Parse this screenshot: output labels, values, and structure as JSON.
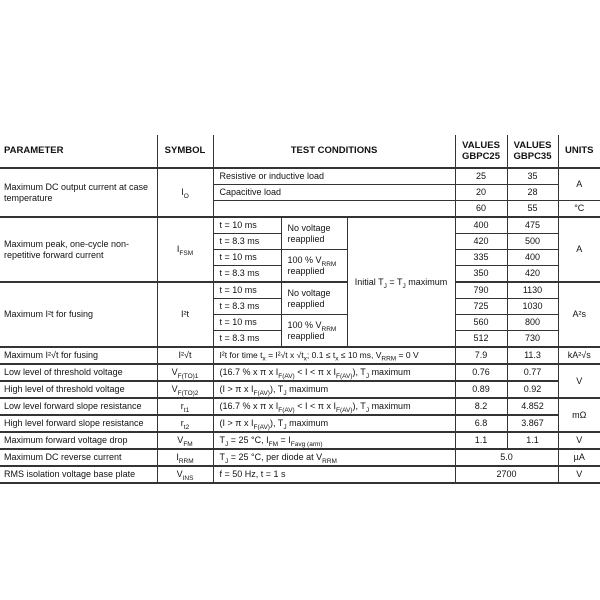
{
  "page": {
    "background": "#ffffff",
    "line_color": "#343434",
    "text_color": "#121212"
  },
  "header": {
    "parameter": "PARAMETER",
    "symbol": "SYMBOL",
    "test_conditions": "TEST CONDITIONS",
    "values_gbpc25_line1": "VALUES",
    "values_gbpc25_line2": "GBPC25",
    "values_gbpc35_line1": "VALUES",
    "values_gbpc35_line2": "GBPC35",
    "units": "UNITS"
  },
  "io": {
    "parameter": "Maximum DC output current at case temperature",
    "symbol": [
      "I",
      {
        "sub": "O"
      }
    ],
    "rows": [
      {
        "condition": "Resistive or inductive load",
        "gbpc25": "25",
        "gbpc35": "35"
      },
      {
        "condition": "Capacitive load",
        "gbpc25": "20",
        "gbpc35": "28"
      },
      {
        "condition": "",
        "gbpc25": "60",
        "gbpc35": "55"
      }
    ],
    "unit_current": "A",
    "unit_temp": "°C"
  },
  "surge": {
    "parameter": "Maximum peak, one-cycle non-repetitive forward current",
    "symbol": [
      "I",
      {
        "sub": "FSM"
      }
    ],
    "times": [
      "t = 10 ms",
      "t = 8.3 ms",
      "t = 10 ms",
      "t = 8.3 ms"
    ],
    "no_voltage": "No voltage reapplied",
    "vrrm_reapplied": [
      "100 % V",
      {
        "sub": "RRM"
      },
      " reapplied"
    ],
    "gbpc25": [
      "400",
      "420",
      "335",
      "350"
    ],
    "gbpc35": [
      "475",
      "500",
      "400",
      "420"
    ],
    "unit": "A"
  },
  "i2t": {
    "parameter": "Maximum I²t for fusing",
    "symbol": "I²t",
    "times": [
      "t = 10 ms",
      "t = 8.3 ms",
      "t = 10 ms",
      "t = 8.3 ms"
    ],
    "no_voltage": "No voltage reapplied",
    "vrrm_reapplied": [
      "100 % V",
      {
        "sub": "RRM"
      },
      " reapplied"
    ],
    "gbpc25": [
      "790",
      "725",
      "560",
      "512"
    ],
    "gbpc35": [
      "1130",
      "1030",
      "800",
      "730"
    ],
    "unit": "A²s"
  },
  "initial_tj": [
    "Initial T",
    {
      "sub": "J"
    },
    " = T",
    {
      "sub": "J"
    },
    " maximum"
  ],
  "simple_rows": [
    {
      "parameter": "Maximum I²√t for fusing",
      "symbol": "I²√t",
      "condition": [
        "I²t for time t",
        {
          "sub": "x"
        },
        " = I²√t x √t",
        {
          "sub": "x"
        },
        "; 0.1 ≤ t",
        {
          "sub": "x"
        },
        " ≤ 10 ms, V",
        {
          "sub": "RRM"
        },
        " = 0 V"
      ],
      "gbpc25": "7.9",
      "gbpc35": "11.3",
      "unit": "kA²√s"
    },
    {
      "parameter": "Low level of threshold voltage",
      "symbol": [
        "V",
        {
          "sub": "F(TO)1"
        }
      ],
      "condition": [
        "(16.7 % x π x I",
        {
          "sub": "F(AV)"
        },
        " < I < π x I",
        {
          "sub": "F(AV)"
        },
        "), T",
        {
          "sub": "J"
        },
        " maximum"
      ],
      "gbpc25": "0.76",
      "gbpc35": "0.77",
      "unit": "V"
    },
    {
      "parameter": "High level of threshold voltage",
      "symbol": [
        "V",
        {
          "sub": "F(TO)2"
        }
      ],
      "condition": [
        "(I > π x I",
        {
          "sub": "F(AV)"
        },
        "), T",
        {
          "sub": "J"
        },
        " maximum"
      ],
      "gbpc25": "0.89",
      "gbpc35": "0.92"
    },
    {
      "parameter": "Low level forward slope resistance",
      "symbol": [
        "r",
        {
          "sub": "t1"
        }
      ],
      "condition": [
        "(16.7 % x π x I",
        {
          "sub": "F(AV)"
        },
        " < I < π x I",
        {
          "sub": "F(AV)"
        },
        "), T",
        {
          "sub": "J"
        },
        " maximum"
      ],
      "gbpc25": "8.2",
      "gbpc35": "4.852",
      "unit": "mΩ"
    },
    {
      "parameter": "High level forward slope resistance",
      "symbol": [
        "r",
        {
          "sub": "t2"
        }
      ],
      "condition": [
        "(I > π x I",
        {
          "sub": "F(AV)"
        },
        "), T",
        {
          "sub": "J"
        },
        " maximum"
      ],
      "gbpc25": "6.8",
      "gbpc35": "3.867"
    },
    {
      "parameter": "Maximum forward voltage drop",
      "symbol": [
        "V",
        {
          "sub": "FM"
        }
      ],
      "condition": [
        "T",
        {
          "sub": "J"
        },
        " = 25 °C, I",
        {
          "sub": "FM"
        },
        " = I",
        {
          "sub": "Favg (arm)"
        }
      ],
      "gbpc25": "1.1",
      "gbpc35": "1.1",
      "unit": "V"
    },
    {
      "parameter": "Maximum DC reverse current",
      "symbol": [
        "I",
        {
          "sub": "RRM"
        }
      ],
      "condition": [
        "T",
        {
          "sub": "J"
        },
        " = 25 °C, per diode at V",
        {
          "sub": "RRM"
        }
      ],
      "value": "5.0",
      "unit": "µA"
    },
    {
      "parameter": "RMS isolation voltage base plate",
      "symbol": [
        "V",
        {
          "sub": "INS"
        }
      ],
      "condition": "f = 50 Hz, t = 1 s",
      "value": "2700",
      "unit": "V"
    }
  ]
}
